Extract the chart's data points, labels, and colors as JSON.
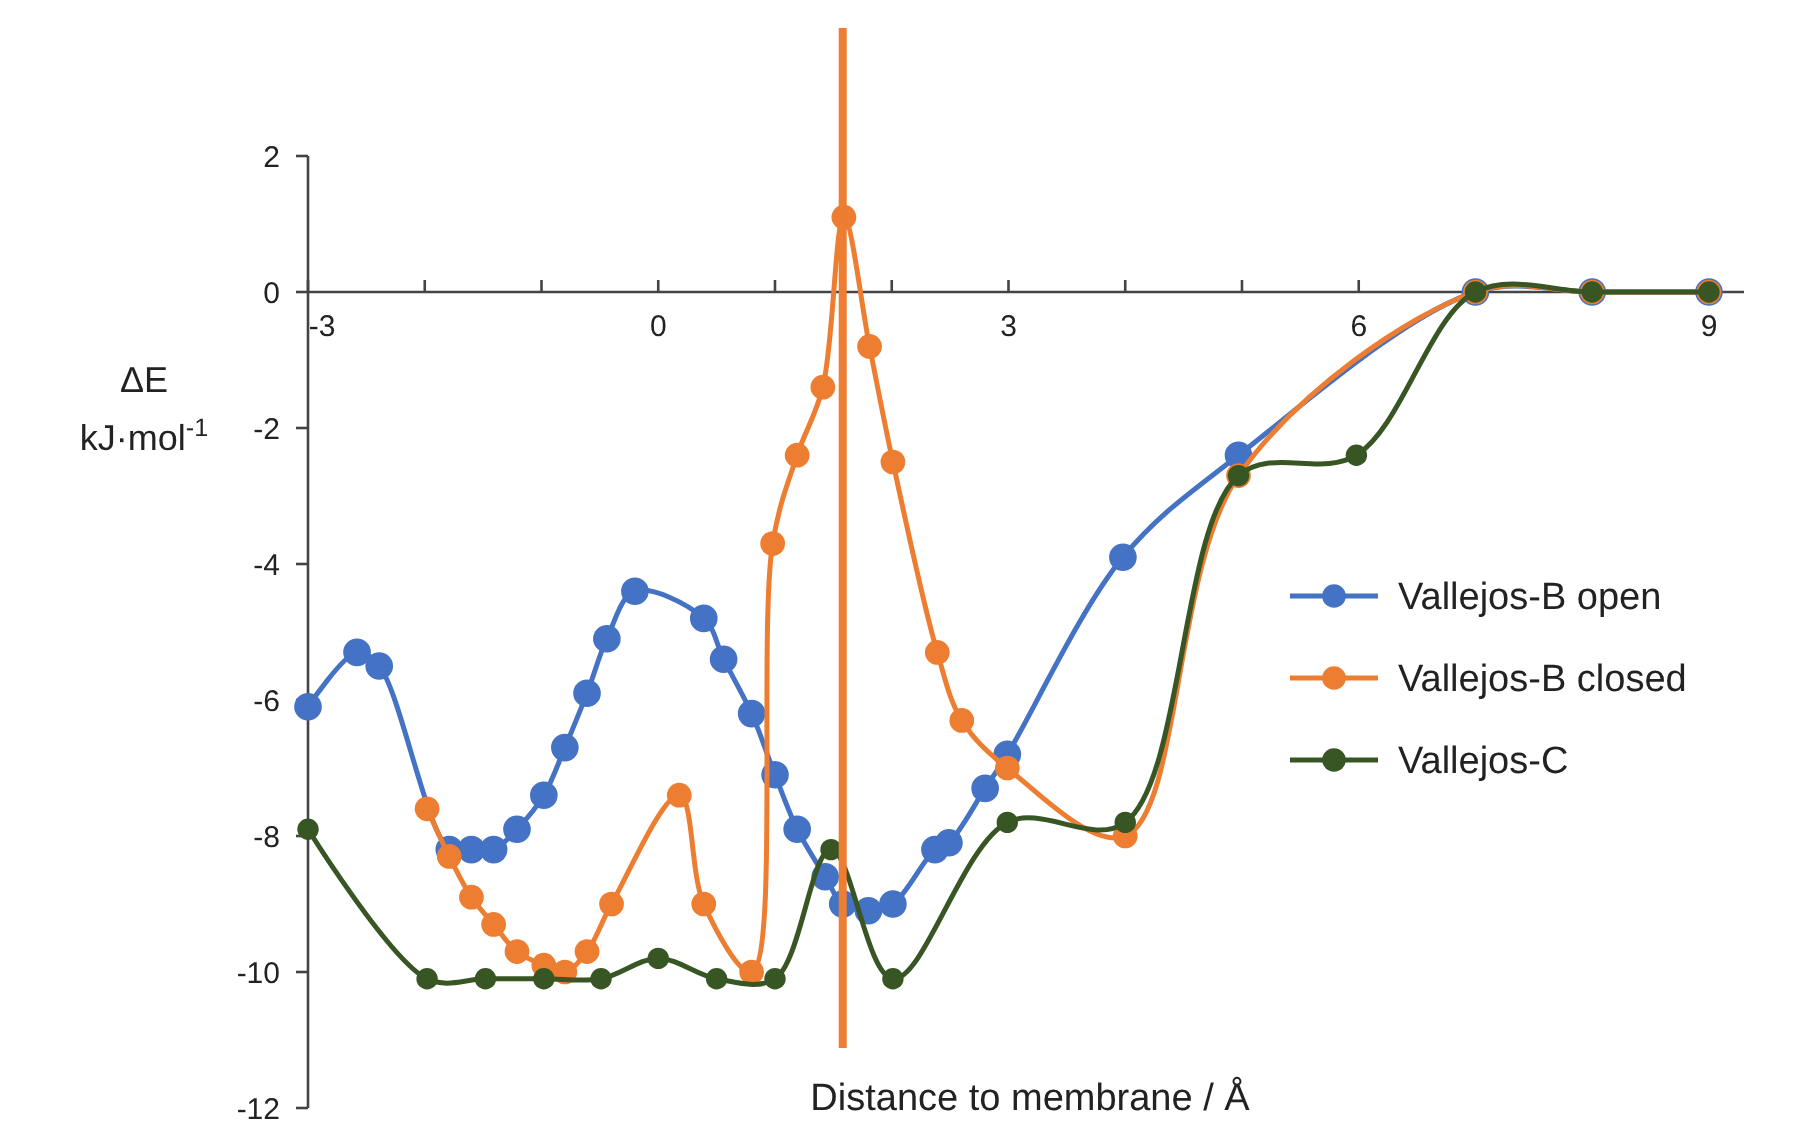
{
  "chart_data": {
    "type": "line",
    "xlabel": "Distance to membrane / Å",
    "ylabel": "ΔE\nkJ·mol$^{-1}$",
    "xlim": [
      -3,
      9.3
    ],
    "xticks": [
      -3,
      {
        "value": -2,
        "label": null
      },
      {
        "value": -1,
        "label": null
      },
      0,
      {
        "value": 1,
        "label": null
      },
      {
        "value": 2,
        "label": null
      },
      3,
      {
        "value": 4,
        "label": null
      },
      {
        "value": 5,
        "label": null
      },
      6,
      {
        "value": 7,
        "label": null
      },
      {
        "value": 8,
        "label": null
      },
      9
    ],
    "ylim": [
      -12,
      2
    ],
    "yticks": [
      -12,
      -10,
      -8,
      -6,
      -4,
      -2,
      0,
      2
    ],
    "grid": false,
    "legend": "right",
    "marker": "circle",
    "line_style": "solid",
    "ref_lines": [
      {
        "axis": "x",
        "value": 1.58,
        "color": "#ed7d31"
      }
    ],
    "series": [
      {
        "name": "Vallejos-B open",
        "color": "#4472c4",
        "x": [
          -3,
          -2.58,
          -2.39,
          -1.79,
          -1.6,
          -1.41,
          -1.21,
          -0.98,
          -0.8,
          -0.61,
          -0.44,
          -0.2,
          0.39,
          0.56,
          0.8,
          1.0,
          1.19,
          1.43,
          1.58,
          1.8,
          2.01,
          2.37,
          2.49,
          2.8,
          2.99,
          3.98,
          4.97,
          7,
          8,
          9
        ],
        "values": [
          -6.1,
          -5.3,
          -5.5,
          -8.2,
          -8.2,
          -8.2,
          -7.9,
          -7.4,
          -6.7,
          -5.9,
          -5.1,
          -4.4,
          -4.8,
          -5.4,
          -6.2,
          -7.1,
          -7.9,
          -8.6,
          -9.0,
          -9.1,
          -9.0,
          -8.2,
          -8.1,
          -7.3,
          -6.8,
          -3.9,
          -2.4,
          0,
          0,
          0
        ]
      },
      {
        "name": "Vallejos-B closed",
        "color": "#ed7d31",
        "x": [
          -1.98,
          -1.79,
          -1.6,
          -1.41,
          -1.21,
          -0.98,
          -0.8,
          -0.61,
          -0.4,
          0.18,
          0.39,
          0.8,
          0.98,
          1.19,
          1.41,
          1.59,
          1.81,
          2.01,
          2.39,
          2.6,
          2.99,
          4.0,
          4.97,
          7,
          8,
          9
        ],
        "values": [
          -7.6,
          -8.3,
          -8.9,
          -9.3,
          -9.7,
          -9.9,
          -10.0,
          -9.7,
          -9.0,
          -7.4,
          -9.0,
          -10.0,
          -3.7,
          -2.4,
          -1.4,
          1.1,
          -0.8,
          -2.5,
          -5.3,
          -6.3,
          -7.0,
          -8.0,
          -2.7,
          0,
          0,
          0
        ]
      },
      {
        "name": "Vallejos-C",
        "color": "#375623",
        "x": [
          -3,
          -1.98,
          -1.48,
          -0.98,
          -0.49,
          0,
          0.5,
          1.0,
          1.48,
          2.01,
          2.99,
          4.0,
          4.97,
          5.98,
          7,
          8,
          9
        ],
        "values": [
          -7.9,
          -10.1,
          -10.1,
          -10.1,
          -10.1,
          -9.8,
          -10.1,
          -10.1,
          -8.2,
          -10.1,
          -7.8,
          -7.8,
          -2.7,
          -2.4,
          0,
          0,
          0
        ]
      }
    ]
  }
}
